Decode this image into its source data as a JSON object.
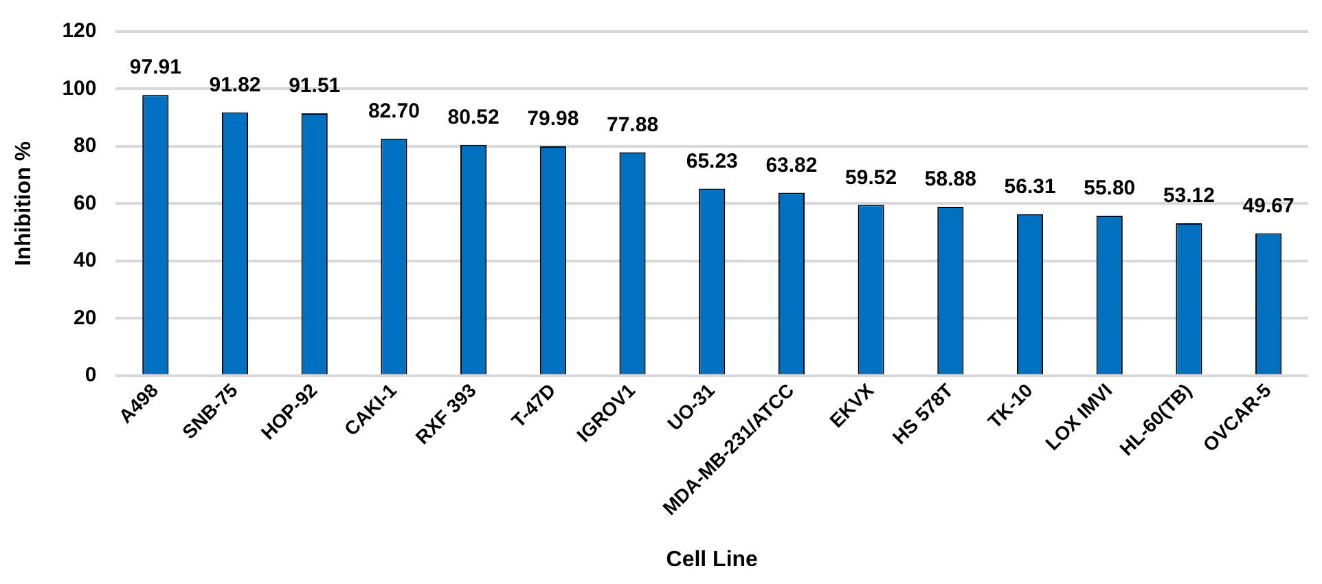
{
  "chart_data": {
    "type": "bar",
    "xlabel": "Cell Line",
    "ylabel": "Inhibition %",
    "categories": [
      "A498",
      "SNB-75",
      "HOP-92",
      "CAKI-1",
      "RXF 393",
      "T-47D",
      "IGROV1",
      "UO-31",
      "MDA-MB-231/ATCC",
      "EKVX",
      "HS 578T",
      "TK-10",
      "LOX IMVI",
      "HL-60(TB)",
      "OVCAR-5"
    ],
    "values": [
      97.91,
      91.82,
      91.51,
      82.7,
      80.52,
      79.98,
      77.88,
      65.23,
      63.82,
      59.52,
      58.88,
      56.31,
      55.8,
      53.12,
      49.67
    ],
    "value_labels": [
      "97.91",
      "91.82",
      "91.51",
      "82.70",
      "80.52",
      "79.98",
      "77.88",
      "65.23",
      "63.82",
      "59.52",
      "58.88",
      "56.31",
      "55.80",
      "53.12",
      "49.67"
    ],
    "color": "#0070c0",
    "ylim": [
      0,
      120
    ],
    "yticks": [
      0,
      20,
      40,
      60,
      80,
      100,
      120
    ],
    "grid": "y",
    "legend": false
  }
}
